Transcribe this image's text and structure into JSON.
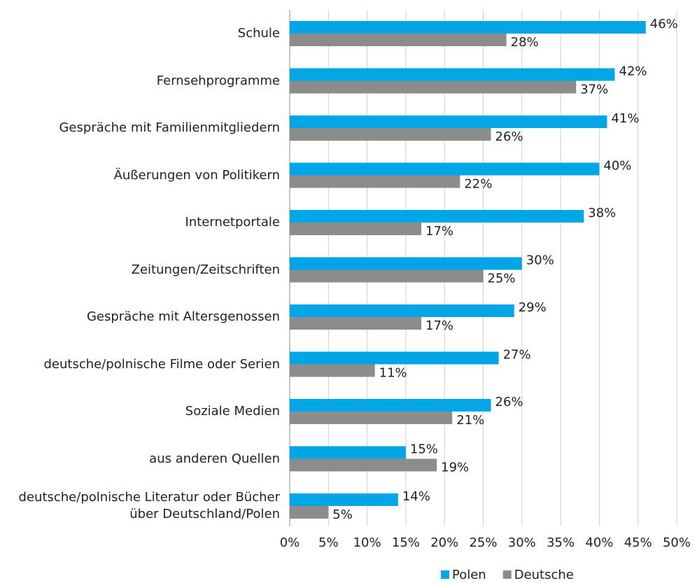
{
  "chart_data": {
    "type": "hbar",
    "categories": [
      "Schule",
      "Fernsehprogramme",
      "Gespräche mit Familienmitgliedern",
      "Äußerungen von Politikern",
      "Internetportale",
      "Zeitungen/Zeitschriften",
      "Gespräche mit Altersgenossen",
      "deutsche/polnische Filme oder Serien",
      "Soziale Medien",
      "aus anderen Quellen",
      "deutsche/polnische Literatur oder Bücher über Deutschland/Polen"
    ],
    "series": [
      {
        "name": "Polen",
        "color": "#00a6e6",
        "values": [
          46,
          42,
          41,
          40,
          38,
          30,
          29,
          27,
          26,
          15,
          14
        ],
        "value_labels": [
          "46%",
          "42%",
          "41%",
          "40%",
          "38%",
          "30%",
          "29%",
          "27%",
          "26%",
          "15%",
          "14%"
        ]
      },
      {
        "name": "Deutsche",
        "color": "#8c8c8c",
        "values": [
          28,
          37,
          26,
          22,
          17,
          25,
          17,
          11,
          21,
          19,
          5
        ],
        "value_labels": [
          "28%",
          "37%",
          "26%",
          "22%",
          "17%",
          "25%",
          "17%",
          "11%",
          "21%",
          "19%",
          "5%"
        ]
      }
    ],
    "xlim": [
      0,
      50
    ],
    "xticks": [
      {
        "value": 0,
        "label": "0%"
      },
      {
        "value": 5,
        "label": "5%"
      },
      {
        "value": 10,
        "label": "10%"
      },
      {
        "value": 15,
        "label": "15%"
      },
      {
        "value": 20,
        "label": "20%"
      },
      {
        "value": 25,
        "label": "25%"
      },
      {
        "value": 30,
        "label": "30%"
      },
      {
        "value": 35,
        "label": "35%"
      },
      {
        "value": 40,
        "label": "40%"
      },
      {
        "value": 45,
        "label": "45%"
      },
      {
        "value": 50,
        "label": "50%"
      }
    ],
    "grid": true,
    "legend": "bottom"
  }
}
